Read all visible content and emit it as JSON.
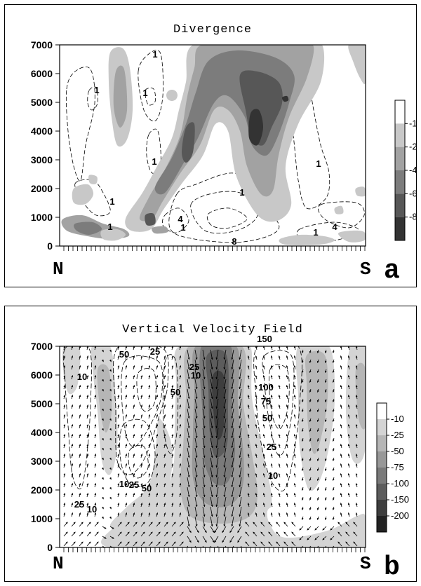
{
  "chart_data": [
    {
      "type": "heatmap",
      "panel": "a",
      "title": "Divergence",
      "xlabel": "",
      "ylabel": "",
      "x_end_labels": [
        "N",
        "S"
      ],
      "panel_letter": "a",
      "y_ticks": [
        "0",
        "1000",
        "2000",
        "3000",
        "4000",
        "5000",
        "6000",
        "7000"
      ],
      "ylim": [
        0,
        7000
      ],
      "colorbar_labels": [
        "-1",
        "-2",
        "-4",
        "-6",
        "-8"
      ],
      "colorbar_colors": [
        "#ffffff",
        "#c8c8c8",
        "#a2a2a2",
        "#7c7c7c",
        "#575757",
        "#333333"
      ],
      "contour_labels": [
        "1",
        "1",
        "1",
        "1",
        "1",
        "1",
        "1",
        "1",
        "4",
        "1",
        "1",
        "4",
        "8"
      ],
      "grid": false
    },
    {
      "type": "heatmap",
      "panel": "b",
      "title": "Vertical Velocity Field",
      "xlabel": "",
      "ylabel": "",
      "x_end_labels": [
        "N",
        "S"
      ],
      "panel_letter": "b",
      "y_ticks": [
        "0",
        "1000",
        "2000",
        "3000",
        "4000",
        "5000",
        "6000",
        "7000"
      ],
      "ylim": [
        0,
        7000
      ],
      "colorbar_labels": [
        "-10",
        "-25",
        "-50",
        "-75",
        "-100",
        "-150",
        "-200"
      ],
      "colorbar_colors": [
        "#ffffff",
        "#d4d4d4",
        "#b6b6b6",
        "#989898",
        "#7a7a7a",
        "#5c5c5c",
        "#3e3e3e",
        "#222222"
      ],
      "contour_labels": [
        "150",
        "50",
        "25",
        "25",
        "10",
        "10",
        "50",
        "100",
        "75",
        "50",
        "25",
        "10",
        "10",
        "25",
        "50",
        "25",
        "10"
      ],
      "grid": false
    }
  ]
}
